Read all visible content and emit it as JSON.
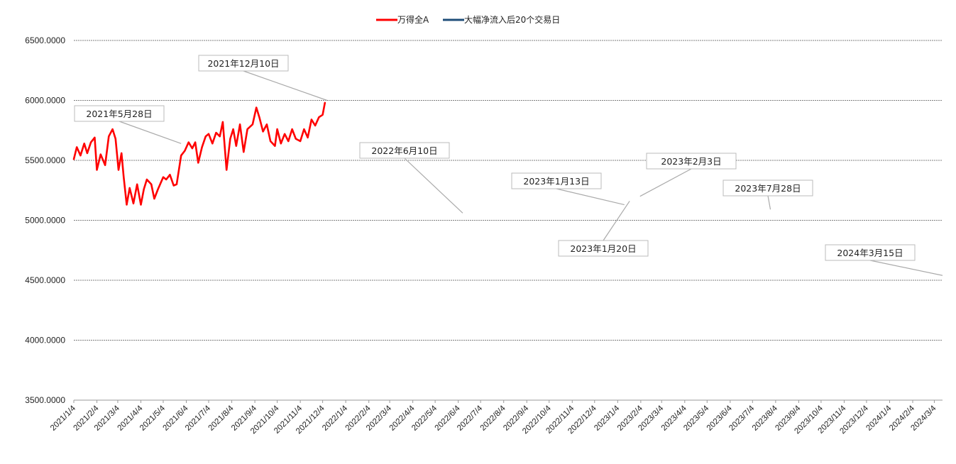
{
  "chart_data": {
    "type": "line",
    "title": "",
    "xlabel": "",
    "ylabel": "",
    "ylim": [
      3500,
      6500
    ],
    "yticks": [
      "6500.0000",
      "6000.0000",
      "5500.0000",
      "5000.0000",
      "4500.0000",
      "4000.0000",
      "3500.0000"
    ],
    "ytick_values": [
      6500,
      6000,
      5500,
      5000,
      4500,
      4000,
      3500
    ],
    "grid": "horizontal",
    "legend_position": "top-center",
    "x_start": "2021/1/4",
    "x_end": "2024/3/15",
    "categories": [
      "2021/1/4",
      "2021/2/4",
      "2021/3/4",
      "2021/4/4",
      "2021/5/4",
      "2021/6/4",
      "2021/7/4",
      "2021/8/4",
      "2021/9/4",
      "2021/10/4",
      "2021/11/4",
      "2021/12/4",
      "2022/1/4",
      "2022/2/4",
      "2022/3/4",
      "2022/4/4",
      "2022/5/4",
      "2022/6/4",
      "2022/7/4",
      "2022/8/4",
      "2022/9/4",
      "2022/10/4",
      "2022/11/4",
      "2022/12/4",
      "2023/1/4",
      "2023/2/4",
      "2023/3/4",
      "2023/4/4",
      "2023/5/4",
      "2023/6/4",
      "2023/7/4",
      "2023/8/4",
      "2023/9/4",
      "2023/10/4",
      "2023/11/4",
      "2023/12/4",
      "2024/1/4",
      "2024/2/4",
      "2024/3/4"
    ],
    "legend": [
      {
        "name": "万得全A",
        "color": "#ff0000"
      },
      {
        "name": "大幅净流入后20个交易日",
        "color": "#1f4e79"
      }
    ],
    "series": [
      {
        "name": "万得全A",
        "color": "#ff0000",
        "points": [
          [
            "2021/1/4",
            5510
          ],
          [
            "2021/1/8",
            5610
          ],
          [
            "2021/1/13",
            5540
          ],
          [
            "2021/1/18",
            5640
          ],
          [
            "2021/1/22",
            5560
          ],
          [
            "2021/1/27",
            5650
          ],
          [
            "2021/2/1",
            5690
          ],
          [
            "2021/2/4",
            5420
          ],
          [
            "2021/2/9",
            5550
          ],
          [
            "2021/2/15",
            5460
          ],
          [
            "2021/2/20",
            5700
          ],
          [
            "2021/2/25",
            5760
          ],
          [
            "2021/3/1",
            5680
          ],
          [
            "2021/3/5",
            5420
          ],
          [
            "2021/3/9",
            5560
          ],
          [
            "2021/3/12",
            5360
          ],
          [
            "2021/3/16",
            5130
          ],
          [
            "2021/3/20",
            5270
          ],
          [
            "2021/3/25",
            5140
          ],
          [
            "2021/3/30",
            5300
          ],
          [
            "2021/4/4",
            5130
          ],
          [
            "2021/4/8",
            5260
          ],
          [
            "2021/4/12",
            5340
          ],
          [
            "2021/4/18",
            5300
          ],
          [
            "2021/4/22",
            5180
          ],
          [
            "2021/4/27",
            5260
          ],
          [
            "2021/5/4",
            5360
          ],
          [
            "2021/5/8",
            5340
          ],
          [
            "2021/5/13",
            5380
          ],
          [
            "2021/5/18",
            5290
          ],
          [
            "2021/5/22",
            5300
          ],
          [
            "2021/5/28",
            5540
          ],
          [
            "2021/6/2",
            5580
          ],
          [
            "2021/6/7",
            5650
          ],
          [
            "2021/6/12",
            5600
          ],
          [
            "2021/6/16",
            5650
          ],
          [
            "2021/6/20",
            5480
          ],
          [
            "2021/6/25",
            5610
          ],
          [
            "2021/6/30",
            5700
          ],
          [
            "2021/7/4",
            5720
          ],
          [
            "2021/7/9",
            5640
          ],
          [
            "2021/7/14",
            5730
          ],
          [
            "2021/7/19",
            5700
          ],
          [
            "2021/7/23",
            5820
          ],
          [
            "2021/7/28",
            5420
          ],
          [
            "2021/8/2",
            5680
          ],
          [
            "2021/8/6",
            5760
          ],
          [
            "2021/8/10",
            5620
          ],
          [
            "2021/8/15",
            5800
          ],
          [
            "2021/8/20",
            5570
          ],
          [
            "2021/8/25",
            5760
          ],
          [
            "2021/9/1",
            5800
          ],
          [
            "2021/9/6",
            5940
          ],
          [
            "2021/9/10",
            5860
          ],
          [
            "2021/9/15",
            5740
          ],
          [
            "2021/9/20",
            5800
          ],
          [
            "2021/9/25",
            5660
          ],
          [
            "2021/10/1",
            5620
          ],
          [
            "2021/10/4",
            5760
          ],
          [
            "2021/10/9",
            5640
          ],
          [
            "2021/10/14",
            5720
          ],
          [
            "2021/10/19",
            5660
          ],
          [
            "2021/10/24",
            5760
          ],
          [
            "2021/10/29",
            5680
          ],
          [
            "2021/11/4",
            5660
          ],
          [
            "2021/11/9",
            5760
          ],
          [
            "2021/11/14",
            5690
          ],
          [
            "2021/11/19",
            5840
          ],
          [
            "2021/11/24",
            5790
          ],
          [
            "2021/11/29",
            5860
          ],
          [
            "2021/12/4",
            5880
          ],
          [
            "2021/12/7",
            5980
          ]
        ]
      },
      {
        "name": "大幅净流入后20个交易日",
        "color": "#1f4e79",
        "points": []
      }
    ],
    "annotations": [
      {
        "label": "2021年5月28日",
        "date": "2021/5/28",
        "value": 5640
      },
      {
        "label": "2021年12月10日",
        "date": "2021/12/10",
        "value": 6000
      },
      {
        "label": "2022年6月10日",
        "date": "2022/6/10",
        "value": 5060
      },
      {
        "label": "2023年1月13日",
        "date": "2023/1/13",
        "value": 5130
      },
      {
        "label": "2023年2月3日",
        "date": "2023/2/3",
        "value": 5200
      },
      {
        "label": "2023年1月20日",
        "date": "2023/1/20",
        "value": 5160
      },
      {
        "label": "2023年7月28日",
        "date": "2023/7/28",
        "value": 5090
      },
      {
        "label": "2024年3月15日",
        "date": "2024/3/15",
        "value": 4540
      }
    ]
  }
}
